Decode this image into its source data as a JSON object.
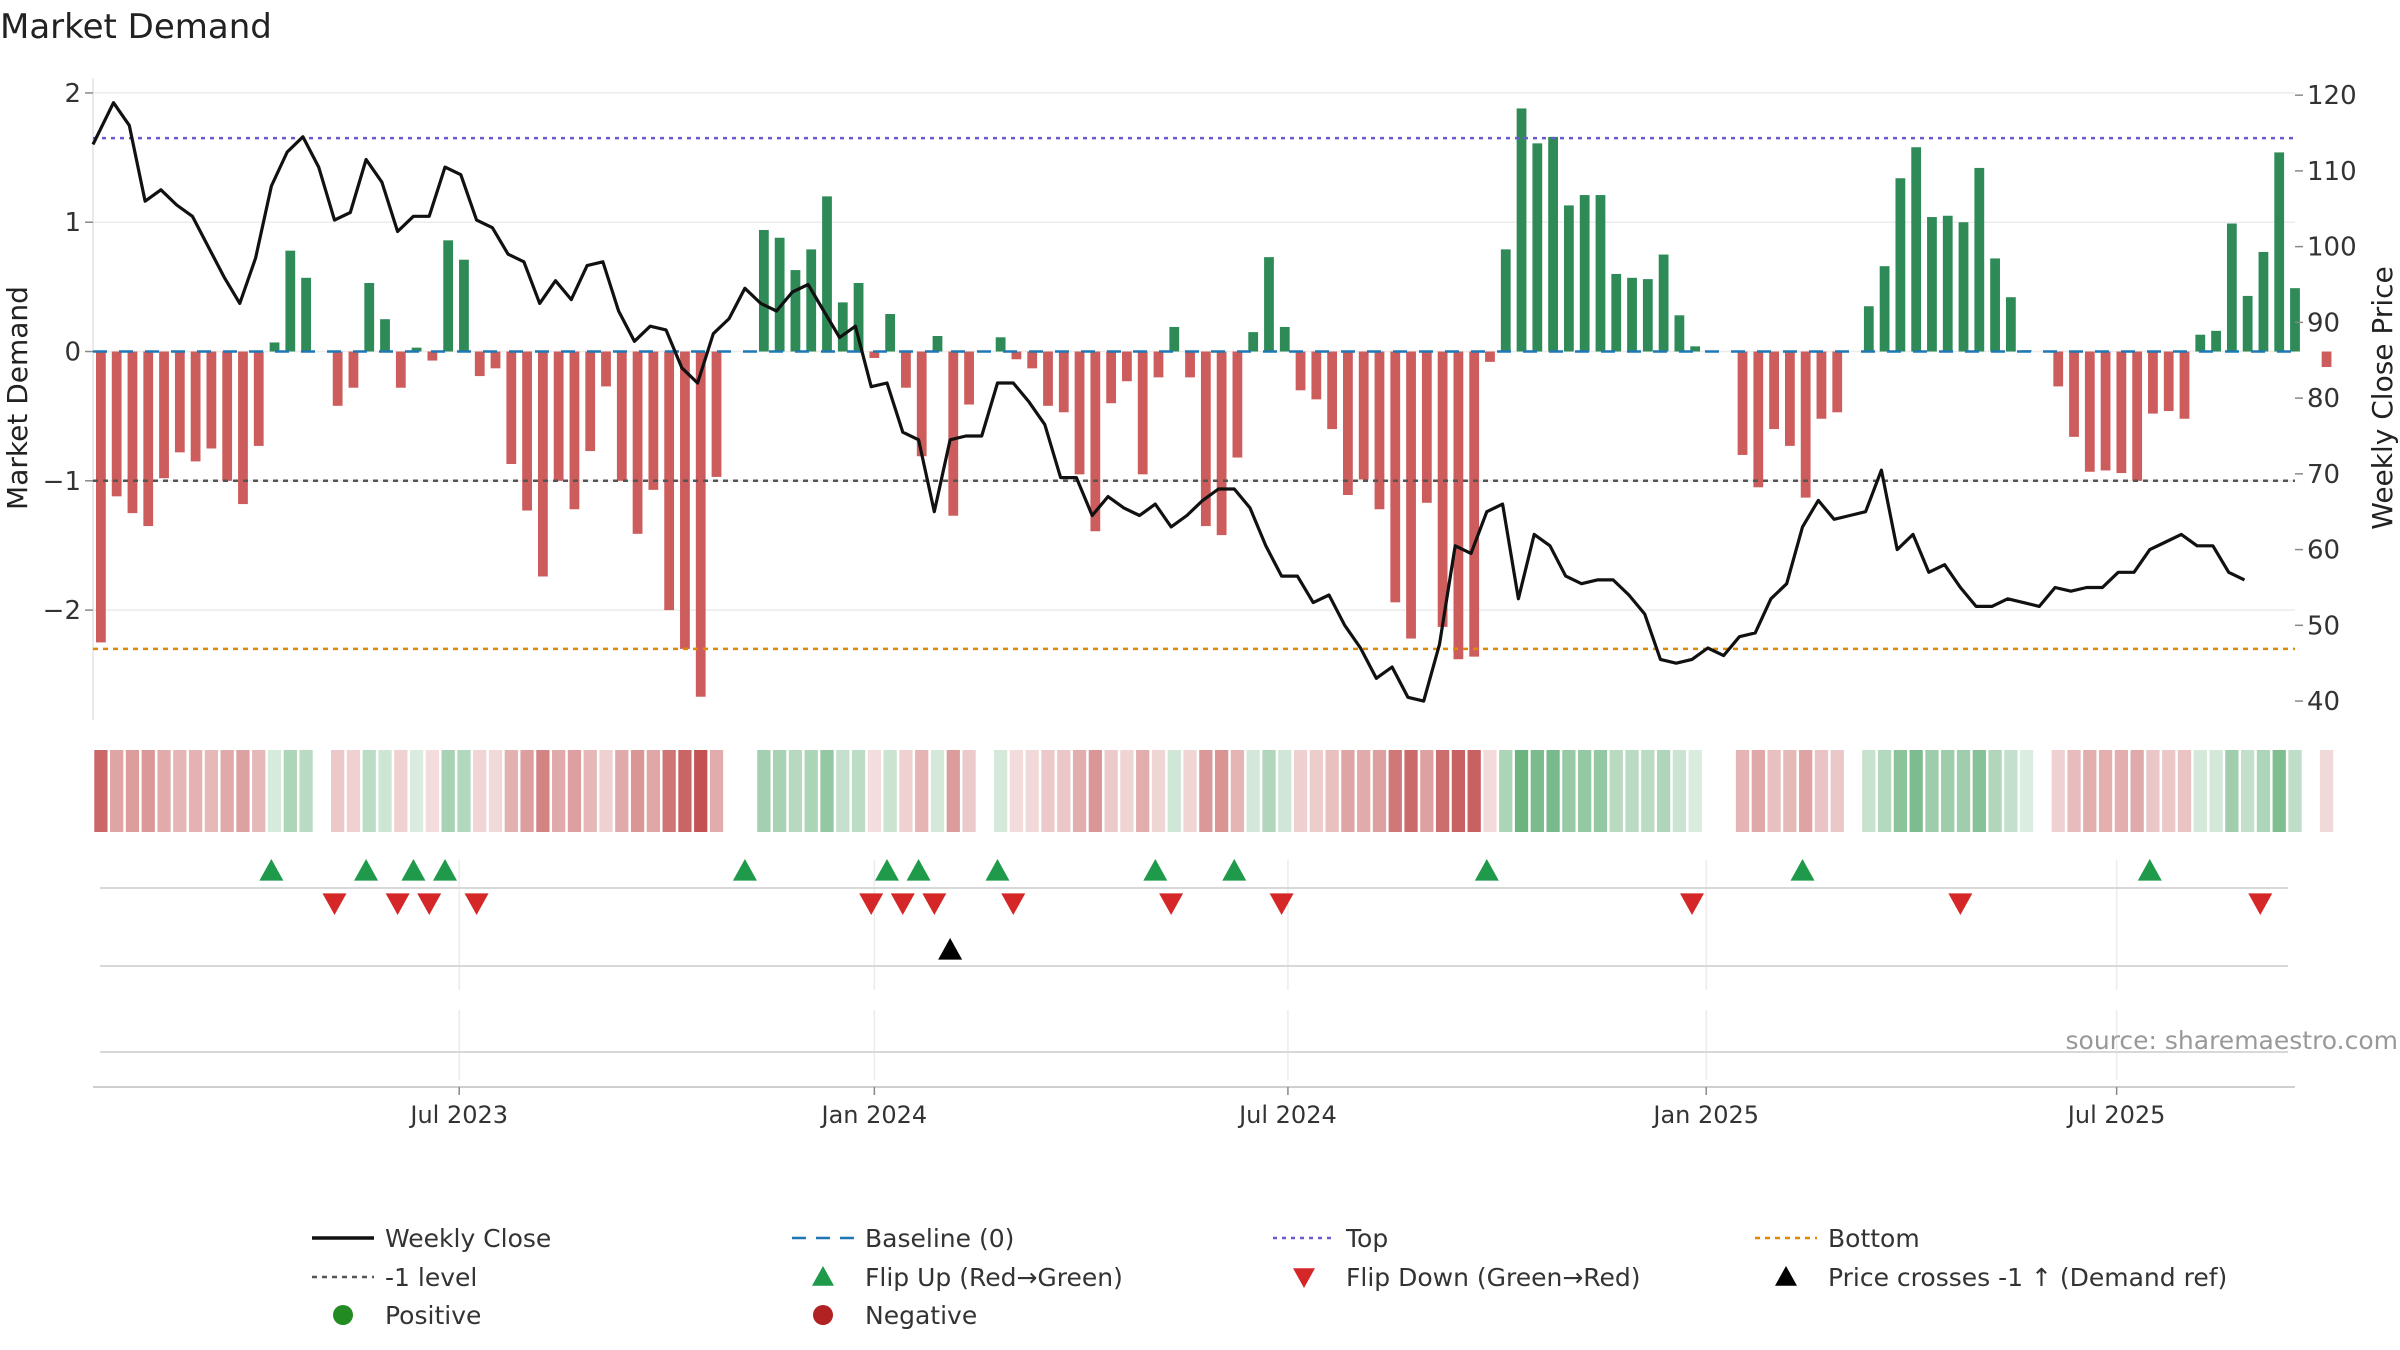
{
  "colors": {
    "positive": "#2e8b57",
    "negative": "#cd5c5c",
    "weekly_close": "#111111",
    "baseline": "#1f77b4",
    "top_line": "#6a5acd",
    "bottom_line": "#e08a00",
    "minus_one_line": "#555555",
    "flip_up": "#1e9a4a",
    "flip_down": "#d62728",
    "cross_marker": "#000000",
    "legend_positive_dot": "#228b22",
    "legend_negative_dot": "#b22222"
  },
  "chart_data": {
    "type": "bar+line",
    "title": "Market Demand",
    "source": "source: sharemaestro.com",
    "y_left": {
      "label": "Market Demand",
      "range": [
        -2.85,
        2.1
      ],
      "ticks": [
        2,
        1,
        0,
        -1,
        -2
      ],
      "tick_labels": [
        "2",
        "1",
        "0",
        "−1",
        "−2"
      ]
    },
    "y_right": {
      "label": "Weekly Close Price",
      "range": [
        37.5,
        122
      ],
      "ticks": [
        120,
        110,
        100,
        90,
        80,
        70,
        60,
        50,
        40
      ],
      "tick_labels": [
        "120",
        "110",
        "100",
        "90",
        "80",
        "70",
        "60",
        "50",
        "40"
      ]
    },
    "x_axis": {
      "range_weeks": [
        0,
        139.5
      ],
      "ticks": [
        {
          "label": "Jul 2023",
          "week": 23.2
        },
        {
          "label": "Jan 2024",
          "week": 49.5
        },
        {
          "label": "Jul 2024",
          "week": 75.7
        },
        {
          "label": "Jan 2025",
          "week": 102.2
        },
        {
          "label": "Jul 2025",
          "week": 128.2
        }
      ]
    },
    "reference_lines": {
      "top": 1.65,
      "bottom": -2.3,
      "minus_one": -1,
      "baseline": 0
    },
    "bar_values": [
      -2.25,
      -1.12,
      -1.25,
      -1.35,
      -0.98,
      -0.78,
      -0.85,
      -0.75,
      -1.0,
      -1.18,
      -0.73,
      0.07,
      0.78,
      0.57,
      0.0,
      -0.42,
      -0.28,
      0.53,
      0.25,
      -0.28,
      0.03,
      -0.07,
      0.86,
      0.71,
      -0.19,
      -0.13,
      -0.87,
      -1.23,
      -1.74,
      -1.0,
      -1.22,
      -0.77,
      -0.27,
      -1.0,
      -1.41,
      -1.07,
      -2.0,
      -2.3,
      -2.67,
      -0.97,
      0.0,
      0.0,
      0.94,
      0.88,
      0.63,
      0.79,
      1.2,
      0.38,
      0.53,
      -0.05,
      0.29,
      -0.28,
      -0.81,
      0.12,
      -1.27,
      -0.41,
      0.0,
      0.11,
      -0.06,
      -0.13,
      -0.42,
      -0.47,
      -0.95,
      -1.39,
      -0.4,
      -0.23,
      -0.95,
      -0.2,
      0.19,
      -0.2,
      -1.35,
      -1.42,
      -0.82,
      0.15,
      0.73,
      0.19,
      -0.3,
      -0.37,
      -0.6,
      -1.11,
      -0.99,
      -1.22,
      -1.94,
      -2.22,
      -1.17,
      -2.13,
      -2.38,
      -2.36,
      -0.08,
      0.79,
      1.88,
      1.61,
      1.66,
      1.13,
      1.21,
      1.21,
      0.6,
      0.57,
      0.56,
      0.75,
      0.28,
      0.04,
      0.0,
      0.0,
      -0.8,
      -1.05,
      -0.6,
      -0.73,
      -1.13,
      -0.52,
      -0.47,
      0.0,
      0.35,
      0.66,
      1.34,
      1.58,
      1.04,
      1.05,
      1.0,
      1.42,
      0.72,
      0.42,
      0.01,
      0.0,
      -0.27,
      -0.66,
      -0.93,
      -0.92,
      -0.94,
      -1.0,
      -0.48,
      -0.46,
      -0.52,
      0.13,
      0.16,
      0.99,
      0.43,
      0.77,
      1.54,
      0.49,
      0.0,
      -0.12
    ],
    "weekly_close": [
      [
        0.0,
        113.5
      ],
      [
        1.3,
        119.0
      ],
      [
        2.3,
        116.0
      ],
      [
        3.3,
        106.0
      ],
      [
        4.3,
        107.5
      ],
      [
        5.3,
        105.5
      ],
      [
        6.3,
        104.0
      ],
      [
        7.3,
        100.0
      ],
      [
        8.3,
        96.0
      ],
      [
        9.3,
        92.5
      ],
      [
        10.3,
        98.5
      ],
      [
        11.3,
        108.0
      ],
      [
        12.3,
        112.5
      ],
      [
        13.3,
        114.5
      ],
      [
        14.3,
        110.5
      ],
      [
        15.3,
        103.5
      ],
      [
        16.3,
        104.5
      ],
      [
        17.3,
        111.5
      ],
      [
        18.3,
        108.5
      ],
      [
        19.3,
        102.0
      ],
      [
        20.3,
        104.0
      ],
      [
        21.3,
        104.0
      ],
      [
        22.3,
        110.5
      ],
      [
        23.3,
        109.5
      ],
      [
        24.3,
        103.5
      ],
      [
        25.3,
        102.5
      ],
      [
        26.3,
        99.0
      ],
      [
        27.3,
        98.0
      ],
      [
        28.3,
        92.5
      ],
      [
        29.3,
        95.5
      ],
      [
        30.3,
        93.0
      ],
      [
        31.3,
        97.5
      ],
      [
        32.3,
        98.0
      ],
      [
        33.3,
        91.5
      ],
      [
        34.3,
        87.5
      ],
      [
        35.3,
        89.5
      ],
      [
        36.3,
        89.0
      ],
      [
        37.3,
        84.0
      ],
      [
        38.3,
        82.0
      ],
      [
        39.3,
        88.5
      ],
      [
        40.3,
        90.5
      ],
      [
        41.3,
        94.5
      ],
      [
        42.3,
        92.5
      ],
      [
        43.3,
        91.5
      ],
      [
        44.3,
        94.0
      ],
      [
        45.3,
        95.0
      ],
      [
        46.3,
        91.5
      ],
      [
        47.3,
        88.0
      ],
      [
        48.3,
        89.5
      ],
      [
        49.3,
        81.5
      ],
      [
        50.3,
        82.0
      ],
      [
        51.3,
        75.5
      ],
      [
        52.3,
        74.5
      ],
      [
        53.3,
        65.0
      ],
      [
        54.3,
        74.5
      ],
      [
        55.3,
        75.0
      ],
      [
        56.3,
        75.0
      ],
      [
        57.3,
        82.0
      ],
      [
        58.3,
        82.0
      ],
      [
        59.3,
        79.5
      ],
      [
        60.3,
        76.5
      ],
      [
        61.3,
        69.5
      ],
      [
        62.3,
        69.5
      ],
      [
        63.3,
        64.5
      ],
      [
        64.3,
        67.0
      ],
      [
        65.3,
        65.5
      ],
      [
        66.3,
        64.5
      ],
      [
        67.3,
        66.0
      ],
      [
        68.3,
        63.0
      ],
      [
        69.3,
        64.5
      ],
      [
        70.3,
        66.5
      ],
      [
        71.3,
        68.0
      ],
      [
        72.3,
        68.0
      ],
      [
        73.3,
        65.5
      ],
      [
        74.3,
        60.5
      ],
      [
        75.3,
        56.5
      ],
      [
        76.3,
        56.5
      ],
      [
        77.3,
        53.0
      ],
      [
        78.3,
        54.0
      ],
      [
        79.3,
        50.0
      ],
      [
        80.3,
        47.0
      ],
      [
        81.3,
        43.0
      ],
      [
        82.3,
        44.5
      ],
      [
        83.3,
        40.5
      ],
      [
        84.3,
        40.0
      ],
      [
        85.3,
        47.5
      ],
      [
        86.3,
        60.5
      ],
      [
        87.3,
        59.5
      ],
      [
        88.3,
        65.0
      ],
      [
        89.3,
        66.0
      ],
      [
        90.3,
        53.5
      ],
      [
        91.3,
        62.0
      ],
      [
        92.3,
        60.5
      ],
      [
        93.3,
        56.5
      ],
      [
        94.3,
        55.5
      ],
      [
        95.3,
        56.0
      ],
      [
        96.3,
        56.0
      ],
      [
        97.3,
        54.0
      ],
      [
        98.3,
        51.5
      ],
      [
        99.3,
        45.5
      ],
      [
        100.3,
        45.0
      ],
      [
        101.3,
        45.5
      ],
      [
        102.3,
        47.0
      ],
      [
        103.3,
        46.0
      ],
      [
        104.3,
        48.5
      ],
      [
        105.3,
        49.0
      ],
      [
        106.3,
        53.5
      ],
      [
        107.3,
        55.5
      ],
      [
        108.3,
        63.0
      ],
      [
        109.3,
        66.5
      ],
      [
        110.3,
        64.0
      ],
      [
        111.3,
        64.5
      ],
      [
        112.3,
        65.0
      ],
      [
        113.3,
        70.5
      ],
      [
        114.3,
        60.0
      ],
      [
        115.3,
        62.0
      ],
      [
        116.3,
        57.0
      ],
      [
        117.3,
        58.0
      ],
      [
        118.3,
        55.0
      ],
      [
        119.3,
        52.5
      ],
      [
        120.3,
        52.5
      ],
      [
        121.3,
        53.5
      ],
      [
        122.3,
        53.0
      ],
      [
        123.3,
        52.5
      ],
      [
        124.3,
        55.0
      ],
      [
        125.3,
        54.5
      ],
      [
        126.3,
        55.0
      ],
      [
        127.3,
        55.0
      ],
      [
        128.3,
        57.0
      ],
      [
        129.3,
        57.0
      ],
      [
        130.3,
        60.0
      ],
      [
        131.3,
        61.0
      ],
      [
        132.3,
        62.0
      ],
      [
        133.3,
        60.5
      ],
      [
        134.3,
        60.5
      ],
      [
        135.3,
        57.0
      ],
      [
        136.3,
        56.0
      ]
    ],
    "flip_up_weeks": [
      11.3,
      17.3,
      20.3,
      22.3,
      41.3,
      50.3,
      52.3,
      57.3,
      67.3,
      72.3,
      88.3,
      108.3,
      130.3
    ],
    "flip_down_weeks": [
      15.3,
      19.3,
      21.3,
      24.3,
      49.3,
      51.3,
      53.3,
      58.3,
      68.3,
      75.3,
      101.3,
      118.3,
      137.3
    ],
    "price_cross_weeks": [
      54.3
    ],
    "legend": [
      {
        "label": "Weekly Close",
        "symbol": "line-solid"
      },
      {
        "label": "Baseline (0)",
        "symbol": "line-dashed"
      },
      {
        "label": "Top",
        "symbol": "line-dotted"
      },
      {
        "label": "Bottom",
        "symbol": "line-dotted"
      },
      {
        "label": "-1 level",
        "symbol": "line-dotted"
      },
      {
        "label": "Flip Up (Red→Green)",
        "symbol": "triangle-up"
      },
      {
        "label": "Flip Down (Green→Red)",
        "symbol": "triangle-down"
      },
      {
        "label": "Price crosses -1 ↑ (Demand ref)",
        "symbol": "triangle-up"
      },
      {
        "label": "Positive",
        "symbol": "dot"
      },
      {
        "label": "Negative",
        "symbol": "dot"
      }
    ]
  }
}
